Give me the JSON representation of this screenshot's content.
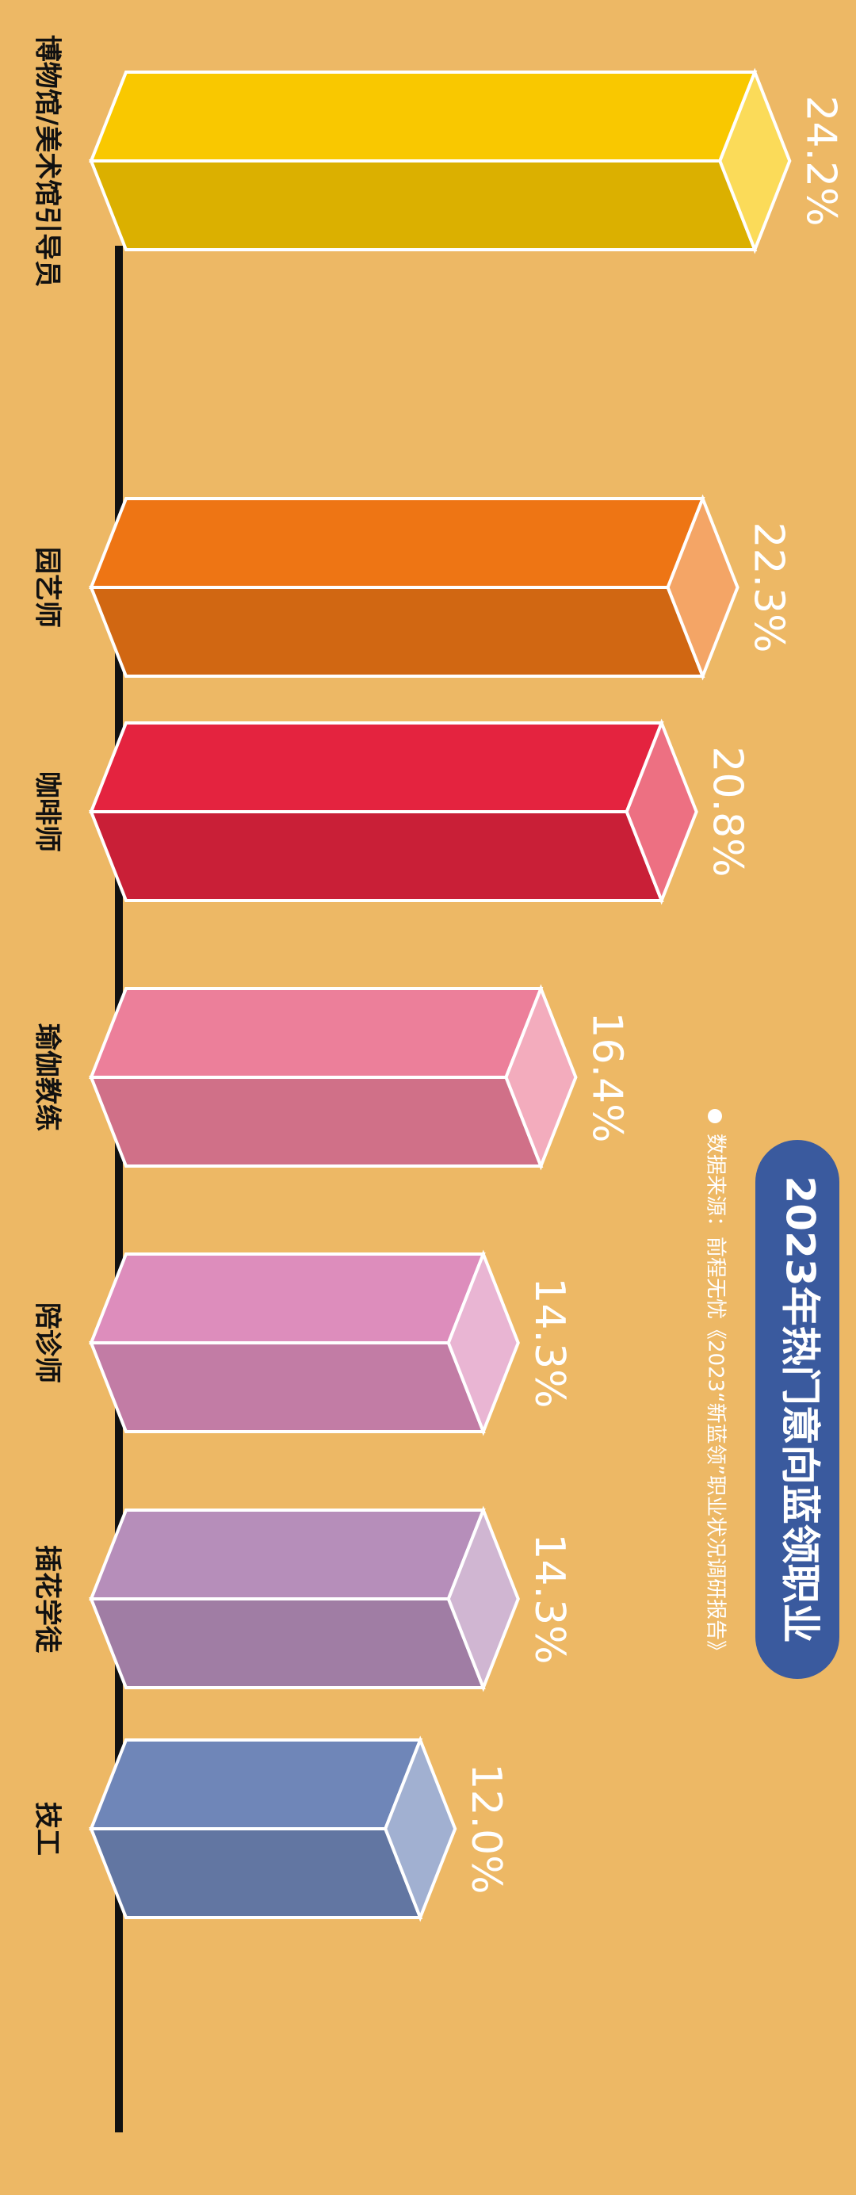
{
  "chart_data": {
    "type": "bar",
    "title": "2023年热门意向蓝领职业",
    "source": "数据来源：前程无忧《2023“新蓝领”职业状况调研报告》",
    "categories": [
      "博物馆/美术馆引导员",
      "园艺师",
      "咖啡师",
      "瑜伽教练",
      "陪诊师",
      "插花学徒",
      "技工"
    ],
    "values": [
      24.2,
      22.3,
      20.8,
      16.4,
      14.3,
      14.3,
      12.0
    ],
    "value_labels": [
      "24.2%",
      "22.3%",
      "20.8%",
      "16.4%",
      "14.3%",
      "14.3%",
      "12.0%"
    ],
    "colors": [
      "#f9c800",
      "#ee7514",
      "#e4233f",
      "#ec7f9a",
      "#dd8dbc",
      "#b68eba",
      "#6f86b8"
    ]
  }
}
